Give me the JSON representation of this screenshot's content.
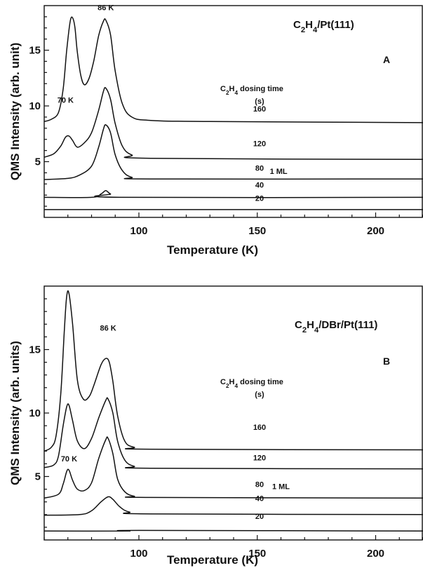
{
  "chart_data": [
    {
      "type": "line",
      "panel_letter": "A",
      "title": [
        "C",
        "2",
        "H",
        "4",
        "/Pt(111)"
      ],
      "xlabel": "Temperature (K)",
      "ylabel": "QMS Intensity (arb. unit)",
      "xlim": [
        60,
        220
      ],
      "ylim": [
        0,
        19
      ],
      "xticks": [
        100,
        150,
        200
      ],
      "yticks": [
        5,
        10,
        15
      ],
      "legend_title": [
        "C",
        "2",
        "H",
        "4",
        " dosing time"
      ],
      "legend_unit": "(s)",
      "annotations": [
        {
          "text": "86 K",
          "x": 86,
          "y": 18.6
        },
        {
          "text": "70 K",
          "x": 69,
          "y": 10.3
        },
        {
          "text": "1 ML",
          "x": 159,
          "y": 3.9
        }
      ],
      "series": [
        {
          "name": "20",
          "label_y": 1.3,
          "baseline": 0.7,
          "points": [
            [
              60,
              0.7
            ],
            [
              220,
              0.7
            ]
          ]
        },
        {
          "name": "40",
          "label_y": 2.5,
          "baseline": 1.8,
          "points": [
            [
              60,
              1.8
            ],
            [
              80,
              1.8
            ],
            [
              84,
              2.1
            ],
            [
              86,
              2.4
            ],
            [
              88,
              2.1
            ],
            [
              92,
              1.8
            ],
            [
              220,
              1.8
            ]
          ]
        },
        {
          "name": "80",
          "label_y": 4.0,
          "baseline": 3.4,
          "points": [
            [
              60,
              3.4
            ],
            [
              70,
              3.5
            ],
            [
              75,
              3.8
            ],
            [
              80,
              4.6
            ],
            [
              83,
              6.3
            ],
            [
              85,
              7.9
            ],
            [
              86,
              8.3
            ],
            [
              88,
              7.6
            ],
            [
              90,
              5.6
            ],
            [
              93,
              4.2
            ],
            [
              97,
              3.6
            ],
            [
              105,
              3.45
            ],
            [
              220,
              3.45
            ]
          ]
        },
        {
          "name": "120",
          "label_y": 6.2,
          "baseline": 5.2,
          "points": [
            [
              60,
              5.4
            ],
            [
              64,
              5.7
            ],
            [
              67,
              6.4
            ],
            [
              69,
              7.2
            ],
            [
              70.5,
              7.3
            ],
            [
              72,
              6.9
            ],
            [
              74,
              6.3
            ],
            [
              77,
              6.7
            ],
            [
              80,
              7.6
            ],
            [
              83,
              9.6
            ],
            [
              85,
              11.3
            ],
            [
              86,
              11.6
            ],
            [
              88,
              10.6
            ],
            [
              90,
              8.4
            ],
            [
              93,
              6.4
            ],
            [
              97,
              5.6
            ],
            [
              105,
              5.3
            ],
            [
              220,
              5.2
            ]
          ]
        },
        {
          "name": "160",
          "label_y": 9.3,
          "baseline": 8.5,
          "points": [
            [
              60,
              8.6
            ],
            [
              63,
              8.8
            ],
            [
              66,
              9.4
            ],
            [
              68,
              11.5
            ],
            [
              69.5,
              15
            ],
            [
              71,
              17.6
            ],
            [
              72,
              17.9
            ],
            [
              73,
              17
            ],
            [
              74,
              14.8
            ],
            [
              75.5,
              12.7
            ],
            [
              77,
              11.9
            ],
            [
              79,
              12.5
            ],
            [
              81,
              14.1
            ],
            [
              83,
              16.3
            ],
            [
              85,
              17.6
            ],
            [
              86,
              17.7
            ],
            [
              88,
              16.4
            ],
            [
              90,
              13.1
            ],
            [
              93,
              10.2
            ],
            [
              97,
              9
            ],
            [
              105,
              8.7
            ],
            [
              130,
              8.6
            ],
            [
              220,
              8.5
            ]
          ]
        }
      ]
    },
    {
      "type": "line",
      "panel_letter": "B",
      "title": [
        "C",
        "2",
        "H",
        "4",
        "/DBr/Pt(111)"
      ],
      "xlabel": "Temperature (K)",
      "ylabel": "QMS Intensity (arb. units)",
      "xlim": [
        60,
        220
      ],
      "ylim": [
        0,
        20
      ],
      "xticks": [
        100,
        150,
        200
      ],
      "yticks": [
        5,
        10,
        15
      ],
      "legend_title": [
        "C",
        "2",
        "H",
        "4",
        " dosing time"
      ],
      "legend_unit": "(s)",
      "annotations": [
        {
          "text": "86 K",
          "x": 87,
          "y": 16.5
        },
        {
          "text": "70 K",
          "x": 70.5,
          "y": 6.2
        },
        {
          "text": "1 ML",
          "x": 160,
          "y": 4.0
        }
      ],
      "series": [
        {
          "name": "20",
          "label_y": 1.5,
          "baseline": 0.7,
          "points": [
            [
              60,
              0.7
            ],
            [
              95,
              0.7
            ],
            [
              100,
              0.75
            ],
            [
              220,
              0.7
            ]
          ]
        },
        {
          "name": "40",
          "label_y": 2.9,
          "baseline": 2.0,
          "points": [
            [
              60,
              1.95
            ],
            [
              75,
              2.0
            ],
            [
              80,
              2.3
            ],
            [
              84,
              3.0
            ],
            [
              87,
              3.4
            ],
            [
              89,
              3.2
            ],
            [
              92,
              2.6
            ],
            [
              96,
              2.2
            ],
            [
              105,
              2.05
            ],
            [
              220,
              2.0
            ]
          ]
        },
        {
          "name": "80",
          "label_y": 4.0,
          "baseline": 3.3,
          "points": [
            [
              60,
              3.3
            ],
            [
              66,
              3.6
            ],
            [
              68,
              4.4
            ],
            [
              69.5,
              5.4
            ],
            [
              70.5,
              5.5
            ],
            [
              72,
              4.7
            ],
            [
              74,
              4.0
            ],
            [
              77,
              3.9
            ],
            [
              80,
              4.5
            ],
            [
              83,
              6.4
            ],
            [
              86,
              7.9
            ],
            [
              87,
              8.0
            ],
            [
              89,
              6.8
            ],
            [
              91,
              4.8
            ],
            [
              94,
              3.8
            ],
            [
              98,
              3.45
            ],
            [
              105,
              3.35
            ],
            [
              220,
              3.3
            ]
          ]
        },
        {
          "name": "120",
          "label_y": 6.1,
          "baseline": 5.6,
          "points": [
            [
              60,
              5.7
            ],
            [
              64,
              5.9
            ],
            [
              66,
              6.6
            ],
            [
              68,
              9.0
            ],
            [
              69.5,
              10.5
            ],
            [
              70.5,
              10.6
            ],
            [
              72,
              9.4
            ],
            [
              74,
              7.8
            ],
            [
              77,
              7.2
            ],
            [
              80,
              8.0
            ],
            [
              83,
              9.6
            ],
            [
              86,
              11.0
            ],
            [
              87,
              11.1
            ],
            [
              89,
              10.0
            ],
            [
              91,
              7.8
            ],
            [
              94,
              6.3
            ],
            [
              98,
              5.8
            ],
            [
              105,
              5.65
            ],
            [
              220,
              5.6
            ]
          ]
        },
        {
          "name": "160",
          "label_y": 8.5,
          "baseline": 7.1,
          "points": [
            [
              60,
              7.0
            ],
            [
              63,
              7.3
            ],
            [
              65,
              8.2
            ],
            [
              67,
              11.5
            ],
            [
              68.5,
              16.5
            ],
            [
              69.5,
              19.2
            ],
            [
              70.5,
              19.4
            ],
            [
              72,
              17
            ],
            [
              74,
              12.6
            ],
            [
              76.5,
              11.1
            ],
            [
              79,
              11.3
            ],
            [
              81,
              12.2
            ],
            [
              84,
              13.8
            ],
            [
              86,
              14.3
            ],
            [
              87.5,
              14.0
            ],
            [
              89,
              12.5
            ],
            [
              91,
              9.8
            ],
            [
              94,
              7.8
            ],
            [
              98,
              7.3
            ],
            [
              105,
              7.15
            ],
            [
              220,
              7.1
            ]
          ]
        }
      ]
    }
  ]
}
